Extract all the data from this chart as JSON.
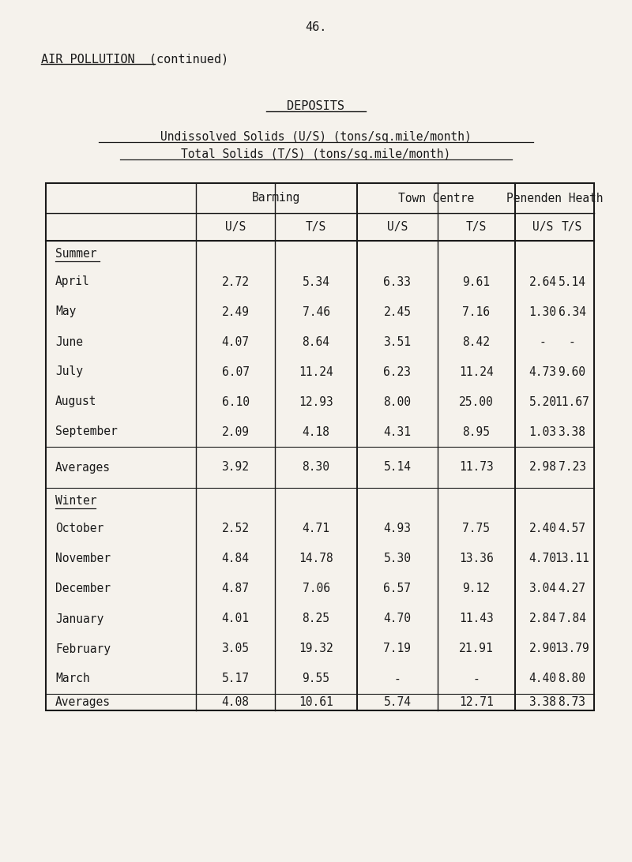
{
  "page_number": "46.",
  "top_title": "AIR POLLUTION  (continued)",
  "section_title": "DEPOSITS",
  "subtitle_line1": "Undissolved Solids (U/S) (tons/sq.mile/month)",
  "subtitle_line2": "Total Solids (T/S) (tons/sq.mile/month)",
  "col_groups": [
    "Barming",
    "Town Centre",
    "Penenden Heath"
  ],
  "col_sub": [
    "U/S",
    "T/S",
    "U/S",
    "T/S",
    "U/S",
    "T/S"
  ],
  "season_summer": "Summer",
  "season_winter": "Winter",
  "rows": [
    {
      "label": "April",
      "vals": [
        "2.72",
        "5.34",
        "6.33",
        "9.61",
        "2.64",
        "5.14"
      ]
    },
    {
      "label": "May",
      "vals": [
        "2.49",
        "7.46",
        "2.45",
        "7.16",
        "1.30",
        "6.34"
      ]
    },
    {
      "label": "June",
      "vals": [
        "4.07",
        "8.64",
        "3.51",
        "8.42",
        "-",
        "-"
      ]
    },
    {
      "label": "July",
      "vals": [
        "6.07",
        "11.24",
        "6.23",
        "11.24",
        "4.73",
        "9.60"
      ]
    },
    {
      "label": "August",
      "vals": [
        "6.10",
        "12.93",
        "8.00",
        "25.00",
        "5.20",
        "11.67"
      ]
    },
    {
      "label": "September",
      "vals": [
        "2.09",
        "4.18",
        "4.31",
        "8.95",
        "1.03",
        "3.38"
      ]
    },
    {
      "label": "Averages",
      "vals": [
        "3.92",
        "8.30",
        "5.14",
        "11.73",
        "2.98",
        "7.23"
      ]
    },
    {
      "label": "October",
      "vals": [
        "2.52",
        "4.71",
        "4.93",
        "7.75",
        "2.40",
        "4.57"
      ]
    },
    {
      "label": "November",
      "vals": [
        "4.84",
        "14.78",
        "5.30",
        "13.36",
        "4.70",
        "13.11"
      ]
    },
    {
      "label": "December",
      "vals": [
        "4.87",
        "7.06",
        "6.57",
        "9.12",
        "3.04",
        "4.27"
      ]
    },
    {
      "label": "January",
      "vals": [
        "4.01",
        "8.25",
        "4.70",
        "11.43",
        "2.84",
        "7.84"
      ]
    },
    {
      "label": "February",
      "vals": [
        "3.05",
        "19.32",
        "7.19",
        "21.91",
        "2.90",
        "13.79"
      ]
    },
    {
      "label": "March",
      "vals": [
        "5.17",
        "9.55",
        "-",
        "-",
        "4.40",
        "8.80"
      ]
    },
    {
      "label": "Averages",
      "vals": [
        "4.08",
        "10.61",
        "5.74",
        "12.71",
        "3.38",
        "8.73"
      ]
    }
  ],
  "bg_color": "#f5f2ec",
  "text_color": "#1a1a1a"
}
